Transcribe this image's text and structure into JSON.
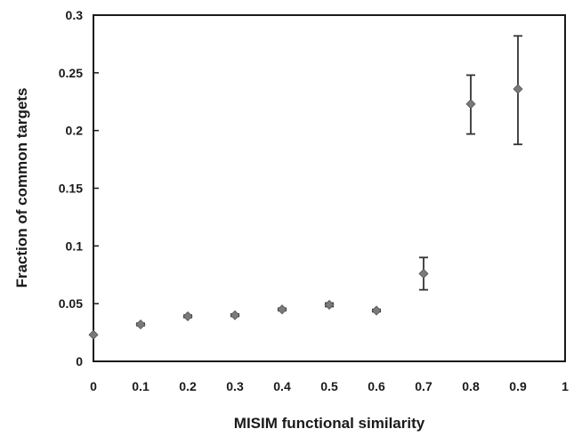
{
  "chart_data": {
    "type": "scatter",
    "title": "",
    "xlabel": "MISIM functional similarity",
    "ylabel": "Fraction of common targets",
    "xlim": [
      0,
      1
    ],
    "ylim": [
      0,
      0.3
    ],
    "x_ticks": [
      "0",
      "0.1",
      "0.2",
      "0.3",
      "0.4",
      "0.5",
      "0.6",
      "0.7",
      "0.8",
      "0.9",
      "1"
    ],
    "y_ticks": [
      "0",
      "0.05",
      "0.1",
      "0.15",
      "0.2",
      "0.25",
      "0.3"
    ],
    "grid": false,
    "legend": "none",
    "series": [
      {
        "marker": "diamond",
        "color": "#7a7a7a",
        "errorbar_color": "#333333",
        "points": [
          {
            "x": 0.0,
            "y": 0.023,
            "err_low": 0.0,
            "err_high": 0.0
          },
          {
            "x": 0.1,
            "y": 0.032,
            "err_low": 0.001,
            "err_high": 0.001
          },
          {
            "x": 0.2,
            "y": 0.039,
            "err_low": 0.001,
            "err_high": 0.001
          },
          {
            "x": 0.3,
            "y": 0.04,
            "err_low": 0.001,
            "err_high": 0.001
          },
          {
            "x": 0.4,
            "y": 0.045,
            "err_low": 0.001,
            "err_high": 0.001
          },
          {
            "x": 0.5,
            "y": 0.049,
            "err_low": 0.0015,
            "err_high": 0.0015
          },
          {
            "x": 0.6,
            "y": 0.044,
            "err_low": 0.001,
            "err_high": 0.001
          },
          {
            "x": 0.7,
            "y": 0.076,
            "err_low": 0.014,
            "err_high": 0.014
          },
          {
            "x": 0.8,
            "y": 0.223,
            "err_low": 0.026,
            "err_high": 0.025
          },
          {
            "x": 0.9,
            "y": 0.236,
            "err_low": 0.048,
            "err_high": 0.046
          }
        ]
      }
    ]
  }
}
